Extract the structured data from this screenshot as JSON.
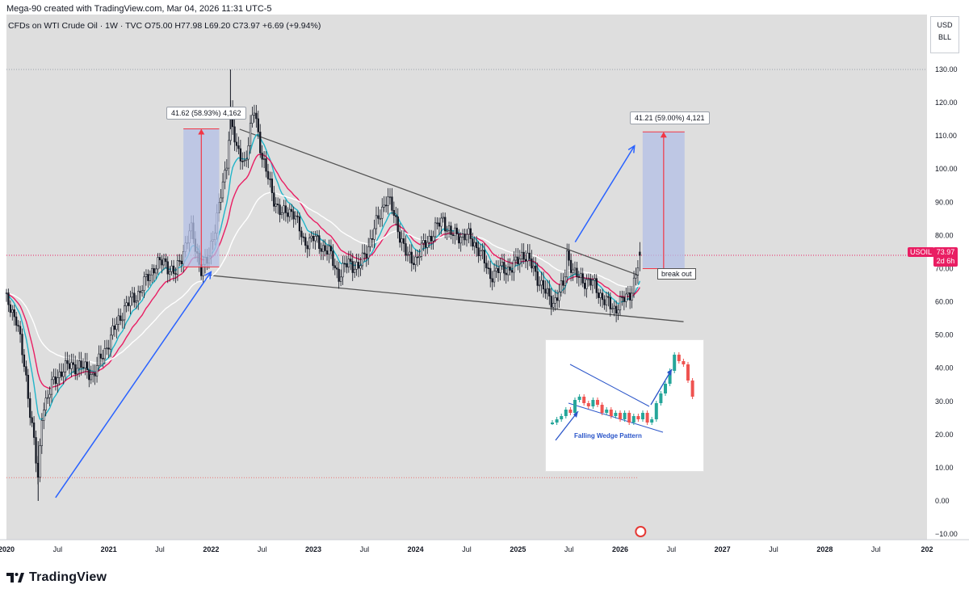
{
  "header": {
    "credit": "Mega-90 created with TradingView.com, Mar 04, 2026 11:31 UTC-5",
    "symbol_line": "CFDs on WTI Crude Oil · 1W · TVC  O75.00  H77.98  L69.20  C73.97  +6.69 (+9.94%)"
  },
  "currency": {
    "ccy": "USD",
    "unit": "BLL"
  },
  "price_tag": {
    "symbol": "USOIL",
    "price": "73.97",
    "countdown": "2d 6h"
  },
  "annotations": {
    "measure_left": "41.62 (58.93%) 4,162",
    "measure_right": "41.21 (59.00%) 4,121",
    "breakout": "break out"
  },
  "inset": {
    "caption": "Falling Wedge Pattern"
  },
  "footer": {
    "brand": "TradingView"
  },
  "colors": {
    "background": "#dedede",
    "up_candle": "#131722",
    "ema_fast": "#22b5c9",
    "ema_mid": "#e91e63",
    "ema_slow": "#ffffff",
    "trendline": "#555555",
    "arrow": "#2962ff",
    "measure_fill": "#b3bfe6",
    "measure_line": "#f23645"
  },
  "chart_data": {
    "type": "candlestick",
    "title": "CFDs on WTI Crude Oil",
    "interval": "1W",
    "ylim": [
      -10,
      135
    ],
    "y_ticks": [
      130,
      120,
      110,
      100,
      90,
      80,
      70,
      60,
      50,
      40,
      30,
      20,
      10,
      0,
      -10
    ],
    "y_tick_labels": [
      "130.00",
      "120.00",
      "110.00",
      "100.00",
      "90.00",
      "80.00",
      "70.00",
      "60.00",
      "50.00",
      "40.00",
      "30.00",
      "20.00",
      "10.00",
      "0.00",
      "−10.00"
    ],
    "x_ticks": [
      {
        "label": "2020",
        "t": 2020.0
      },
      {
        "label": "Jul",
        "t": 2020.5
      },
      {
        "label": "2021",
        "t": 2021.0
      },
      {
        "label": "Jul",
        "t": 2021.5
      },
      {
        "label": "2022",
        "t": 2022.0
      },
      {
        "label": "Jul",
        "t": 2022.5
      },
      {
        "label": "2023",
        "t": 2023.0
      },
      {
        "label": "Jul",
        "t": 2023.5
      },
      {
        "label": "2024",
        "t": 2024.0
      },
      {
        "label": "Jul",
        "t": 2024.5
      },
      {
        "label": "2025",
        "t": 2025.0
      },
      {
        "label": "Jul",
        "t": 2025.5
      },
      {
        "label": "2026",
        "t": 2026.0
      },
      {
        "label": "Jul",
        "t": 2026.5
      },
      {
        "label": "2027",
        "t": 2027.0
      },
      {
        "label": "Jul",
        "t": 2027.5
      },
      {
        "label": "2028",
        "t": 2028.0
      },
      {
        "label": "Jul",
        "t": 2028.5
      },
      {
        "label": "202",
        "t": 2029.0
      }
    ],
    "xlim": [
      2020.0,
      2029.0
    ],
    "price_path": [
      [
        2020.0,
        60
      ],
      [
        2020.1,
        55
      ],
      [
        2020.2,
        35
      ],
      [
        2020.27,
        18
      ],
      [
        2020.31,
        5
      ],
      [
        2020.35,
        28
      ],
      [
        2020.45,
        35
      ],
      [
        2020.55,
        40
      ],
      [
        2020.7,
        41
      ],
      [
        2020.85,
        38
      ],
      [
        2021.0,
        48
      ],
      [
        2021.15,
        58
      ],
      [
        2021.3,
        63
      ],
      [
        2021.45,
        71
      ],
      [
        2021.55,
        72
      ],
      [
        2021.65,
        68
      ],
      [
        2021.8,
        82
      ],
      [
        2021.9,
        70
      ],
      [
        2021.97,
        72
      ],
      [
        2022.05,
        85
      ],
      [
        2022.15,
        100
      ],
      [
        2022.19,
        118
      ],
      [
        2022.25,
        105
      ],
      [
        2022.33,
        102
      ],
      [
        2022.42,
        118
      ],
      [
        2022.5,
        104
      ],
      [
        2022.6,
        92
      ],
      [
        2022.7,
        86
      ],
      [
        2022.8,
        88
      ],
      [
        2022.9,
        78
      ],
      [
        2023.0,
        79
      ],
      [
        2023.15,
        75
      ],
      [
        2023.25,
        68
      ],
      [
        2023.35,
        72
      ],
      [
        2023.45,
        70
      ],
      [
        2023.6,
        82
      ],
      [
        2023.72,
        92
      ],
      [
        2023.8,
        85
      ],
      [
        2023.92,
        73
      ],
      [
        2024.0,
        73
      ],
      [
        2024.15,
        80
      ],
      [
        2024.27,
        85
      ],
      [
        2024.35,
        80
      ],
      [
        2024.5,
        80
      ],
      [
        2024.62,
        76
      ],
      [
        2024.72,
        68
      ],
      [
        2024.85,
        70
      ],
      [
        2024.95,
        70
      ],
      [
        2025.05,
        75
      ],
      [
        2025.15,
        70
      ],
      [
        2025.28,
        62
      ],
      [
        2025.35,
        60
      ],
      [
        2025.45,
        65
      ],
      [
        2025.48,
        75
      ],
      [
        2025.55,
        68
      ],
      [
        2025.62,
        67
      ],
      [
        2025.75,
        65
      ],
      [
        2025.85,
        60
      ],
      [
        2025.95,
        58
      ],
      [
        2026.05,
        61
      ],
      [
        2026.12,
        64
      ],
      [
        2026.17,
        70
      ],
      [
        2026.2,
        74
      ]
    ],
    "last": {
      "open": 75.0,
      "high": 77.98,
      "low": 69.2,
      "close": 73.97,
      "change": 6.69,
      "change_pct": 9.94
    },
    "wedge_upper": [
      [
        2022.28,
        112
      ],
      [
        2026.18,
        68
      ]
    ],
    "wedge_lower": [
      [
        2021.98,
        68
      ],
      [
        2026.62,
        54
      ]
    ],
    "measure_left": {
      "t0": 2021.73,
      "t1": 2022.08,
      "low": 70.5,
      "high": 112.1,
      "label": "41.62 (58.93%) 4,162"
    },
    "measure_right": {
      "t0": 2026.22,
      "t1": 2026.63,
      "low": 70.0,
      "high": 111.2,
      "label": "41.21 (59.00%) 4,121"
    },
    "arrow_up_left": [
      [
        2020.48,
        1
      ],
      [
        2022.0,
        69
      ]
    ],
    "arrow_up_right": [
      [
        2025.56,
        78
      ],
      [
        2026.14,
        107
      ]
    ]
  }
}
